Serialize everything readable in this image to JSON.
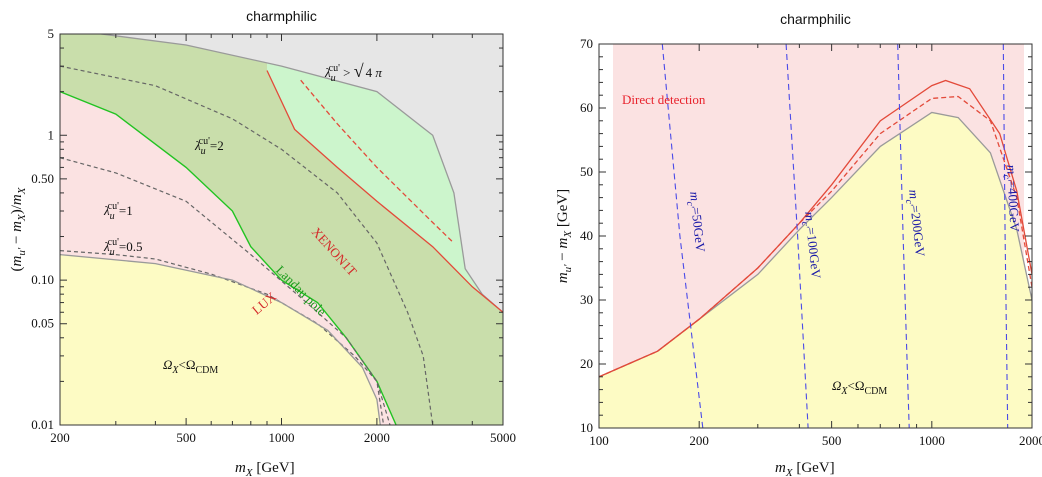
{
  "chart_data": [
    {
      "type": "area",
      "title": "charmphilic",
      "xlabel": "m_X [GeV]",
      "ylabel": "(m_u' − m_X)/m_X",
      "xscale": "log",
      "yscale": "log",
      "xlim": [
        200,
        5000
      ],
      "ylim": [
        0.01,
        5
      ],
      "x_ticks": [
        200,
        500,
        1000,
        2000,
        5000
      ],
      "x_tick_labels": [
        "200",
        "500",
        "1000",
        "2000",
        "5000"
      ],
      "y_ticks": [
        0.01,
        0.05,
        0.1,
        0.5,
        1,
        5
      ],
      "y_tick_labels": [
        "0.01",
        "0.05",
        "0.10",
        "0.50",
        "1",
        "5"
      ],
      "grid": false,
      "regions": [
        {
          "name": "λ_u^cu' > √4π",
          "color": "#e6e6e6"
        },
        {
          "name": "Landau pole",
          "color": "#c9deab"
        },
        {
          "name": "XENON1T",
          "color": "#ccf5cc"
        },
        {
          "name": "Direct detection",
          "color": "#fbe2e2"
        },
        {
          "name": "Ω_X < Ω_CDM",
          "color": "#fdfbc4"
        }
      ],
      "curves": [
        {
          "name": "λ_u^cu'>√4π boundary",
          "style": "gray solid",
          "points": [
            [
              270,
              5
            ],
            [
              500,
              4.2
            ],
            [
              1000,
              3.0
            ],
            [
              2000,
              2.0
            ],
            [
              3000,
              1.0
            ],
            [
              3500,
              0.4
            ],
            [
              3800,
              0.12
            ],
            [
              4300,
              0.08
            ],
            [
              5000,
              0.06
            ]
          ]
        },
        {
          "name": "Landau pole",
          "style": "green solid",
          "points": [
            [
              200,
              2.0
            ],
            [
              300,
              1.4
            ],
            [
              500,
              0.6
            ],
            [
              700,
              0.3
            ],
            [
              800,
              0.17
            ],
            [
              1000,
              0.1
            ],
            [
              1300,
              0.07
            ],
            [
              1600,
              0.04
            ],
            [
              2000,
              0.02
            ],
            [
              2300,
              0.01
            ]
          ]
        },
        {
          "name": "LUX",
          "style": "red solid",
          "points": [
            [
              900,
              2.8
            ],
            [
              1100,
              1.1
            ],
            [
              1500,
              0.6
            ],
            [
              2000,
              0.35
            ],
            [
              3000,
              0.17
            ],
            [
              4000,
              0.09
            ],
            [
              5000,
              0.06
            ]
          ]
        },
        {
          "name": "XENON1T",
          "style": "red dashed",
          "points": [
            [
              1150,
              2.4
            ],
            [
              1500,
              1.2
            ],
            [
              2000,
              0.6
            ],
            [
              3000,
              0.25
            ],
            [
              3500,
              0.18
            ]
          ]
        },
        {
          "name": "λ=2",
          "style": "gray dashed",
          "points": [
            [
              200,
              3.0
            ],
            [
              400,
              2.2
            ],
            [
              700,
              1.3
            ],
            [
              1000,
              0.8
            ],
            [
              1500,
              0.4
            ],
            [
              2000,
              0.18
            ],
            [
              2500,
              0.06
            ],
            [
              2800,
              0.03
            ],
            [
              3000,
              0.01
            ]
          ]
        },
        {
          "name": "λ=1",
          "style": "gray dashed",
          "points": [
            [
              200,
              0.7
            ],
            [
              300,
              0.55
            ],
            [
              500,
              0.35
            ],
            [
              800,
              0.15
            ],
            [
              1200,
              0.07
            ],
            [
              1600,
              0.04
            ],
            [
              2000,
              0.02
            ],
            [
              2200,
              0.01
            ]
          ]
        },
        {
          "name": "λ=0.5",
          "style": "gray dashed",
          "points": [
            [
              200,
              0.16
            ],
            [
              300,
              0.15
            ],
            [
              400,
              0.14
            ],
            [
              600,
              0.11
            ],
            [
              900,
              0.08
            ],
            [
              1300,
              0.05
            ],
            [
              1700,
              0.03
            ],
            [
              2000,
              0.02
            ],
            [
              2100,
              0.01
            ]
          ]
        },
        {
          "name": "Ω_X<Ω_CDM boundary",
          "style": "gray solid",
          "points": [
            [
              200,
              0.15
            ],
            [
              400,
              0.13
            ],
            [
              700,
              0.1
            ],
            [
              1000,
              0.07
            ],
            [
              1400,
              0.045
            ],
            [
              1800,
              0.025
            ],
            [
              2000,
              0.015
            ],
            [
              2050,
              0.01
            ]
          ]
        }
      ],
      "annotations": [
        {
          "text": "λ_u^cu'>√4π",
          "color": "#111111"
        },
        {
          "text": "λ_u^cu'=2",
          "color": "#111111"
        },
        {
          "text": "λ_u^cu'=1",
          "color": "#111111"
        },
        {
          "text": "λ_u^cu'=0.5",
          "color": "#111111"
        },
        {
          "text": "LUX",
          "color": "#d42a2a"
        },
        {
          "text": "XENON1T",
          "color": "#d42a2a"
        },
        {
          "text": "Landau pole",
          "color": "#1a9a1a"
        },
        {
          "text": "Ω_X<Ω_CDM",
          "color": "#111111"
        }
      ]
    },
    {
      "type": "area",
      "title": "charmphilic",
      "xlabel": "m_X [GeV]",
      "ylabel": "m_u' − m_X [GeV]",
      "xscale": "log",
      "yscale": "linear",
      "xlim": [
        100,
        2000
      ],
      "ylim": [
        10,
        70
      ],
      "x_ticks": [
        100,
        200,
        500,
        1000,
        2000
      ],
      "x_tick_labels": [
        "100",
        "200",
        "500",
        "1000",
        "2000"
      ],
      "y_ticks": [
        10,
        20,
        30,
        40,
        50,
        60,
        70
      ],
      "y_tick_labels": [
        "10",
        "20",
        "30",
        "40",
        "50",
        "60",
        "70"
      ],
      "grid": false,
      "regions": [
        {
          "name": "Direct detection",
          "color": "#fbe2e2"
        },
        {
          "name": "Ω_X < Ω_CDM",
          "color": "#fdfbc4"
        }
      ],
      "curves": [
        {
          "name": "relic boundary",
          "style": "gray solid",
          "points": [
            [
              100,
              18
            ],
            [
              150,
              22
            ],
            [
              200,
              27
            ],
            [
              300,
              34
            ],
            [
              400,
              41
            ],
            [
              500,
              46
            ],
            [
              700,
              54
            ],
            [
              1000,
              59.3
            ],
            [
              1200,
              58.5
            ],
            [
              1500,
              53
            ],
            [
              1800,
              41
            ],
            [
              2000,
              30
            ]
          ]
        },
        {
          "name": "LUX",
          "style": "red solid",
          "points": [
            [
              100,
              18
            ],
            [
              150,
              22
            ],
            [
              200,
              27
            ],
            [
              300,
              35
            ],
            [
              400,
              42
            ],
            [
              500,
              48
            ],
            [
              700,
              58
            ],
            [
              1000,
              63.5
            ],
            [
              1100,
              64.3
            ],
            [
              1300,
              63
            ],
            [
              1600,
              56
            ],
            [
              1800,
              47
            ],
            [
              2000,
              34
            ]
          ]
        },
        {
          "name": "XENON1T",
          "style": "red dashed",
          "points": [
            [
              100,
              18
            ],
            [
              150,
              22
            ],
            [
              200,
              27
            ],
            [
              300,
              35
            ],
            [
              400,
              42
            ],
            [
              500,
              47
            ],
            [
              700,
              56
            ],
            [
              1000,
              61.5
            ],
            [
              1200,
              61.8
            ],
            [
              1500,
              58
            ],
            [
              1800,
              46
            ],
            [
              2000,
              32
            ]
          ]
        },
        {
          "name": "m_c'=50GeV",
          "style": "blue dashed",
          "points": [
            [
              155,
              70
            ],
            [
              175,
              40
            ],
            [
              205,
              10
            ]
          ]
        },
        {
          "name": "m_c'=100GeV",
          "style": "blue dashed",
          "points": [
            [
              365,
              70
            ],
            [
              395,
              40
            ],
            [
              425,
              10
            ]
          ]
        },
        {
          "name": "m_c'=200GeV",
          "style": "blue dashed",
          "points": [
            [
              790,
              70
            ],
            [
              820,
              40
            ],
            [
              855,
              10
            ]
          ]
        },
        {
          "name": "m_c'=400GeV",
          "style": "blue dashed",
          "points": [
            [
              1640,
              70
            ],
            [
              1660,
              40
            ],
            [
              1690,
              10
            ]
          ]
        }
      ],
      "annotations": [
        {
          "text": "Direct detection",
          "color": "#e8222c"
        },
        {
          "text": "m_c'=50GeV",
          "color": "#1a1aa8"
        },
        {
          "text": "m_c'=100GeV",
          "color": "#1a1aa8"
        },
        {
          "text": "m_c'=200GeV",
          "color": "#1a1aa8"
        },
        {
          "text": "m_c'=400GeV",
          "color": "#1a1aa8"
        },
        {
          "text": "Ω_X<Ω_CDM",
          "color": "#111111"
        }
      ]
    }
  ]
}
